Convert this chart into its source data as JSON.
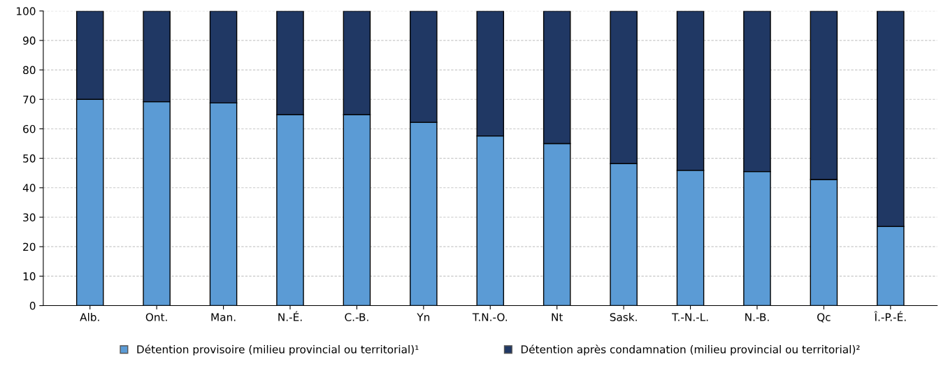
{
  "chart_data": {
    "type": "bar",
    "stacked": true,
    "categories": [
      "Alb.",
      "Ont.",
      "Man.",
      "N.-É.",
      "C.-B.",
      "Yn",
      "T.N.-O.",
      "Nt",
      "Sask.",
      "T.-N.-L.",
      "N.-B.",
      "Qc",
      "Î.-P.-É."
    ],
    "series": [
      {
        "name": "Détention provisoire (milieu provincial ou territorial)¹",
        "color": "#5b9bd5",
        "values": [
          70,
          69.2,
          68.8,
          64.8,
          64.8,
          62.2,
          57.6,
          55,
          48.2,
          45.9,
          45.5,
          42.8,
          26.9
        ]
      },
      {
        "name": "Détention après condamnation (milieu provincial ou territorial)²",
        "color": "#203864",
        "values": [
          30,
          30.8,
          31.2,
          35.2,
          35.2,
          37.8,
          42.4,
          45,
          51.8,
          54.1,
          54.5,
          57.2,
          73.1
        ]
      }
    ],
    "ylim": [
      0,
      100
    ],
    "yticks": [
      0,
      10,
      20,
      30,
      40,
      50,
      60,
      70,
      80,
      90,
      100
    ],
    "grid": "y",
    "legend": "bottom"
  }
}
